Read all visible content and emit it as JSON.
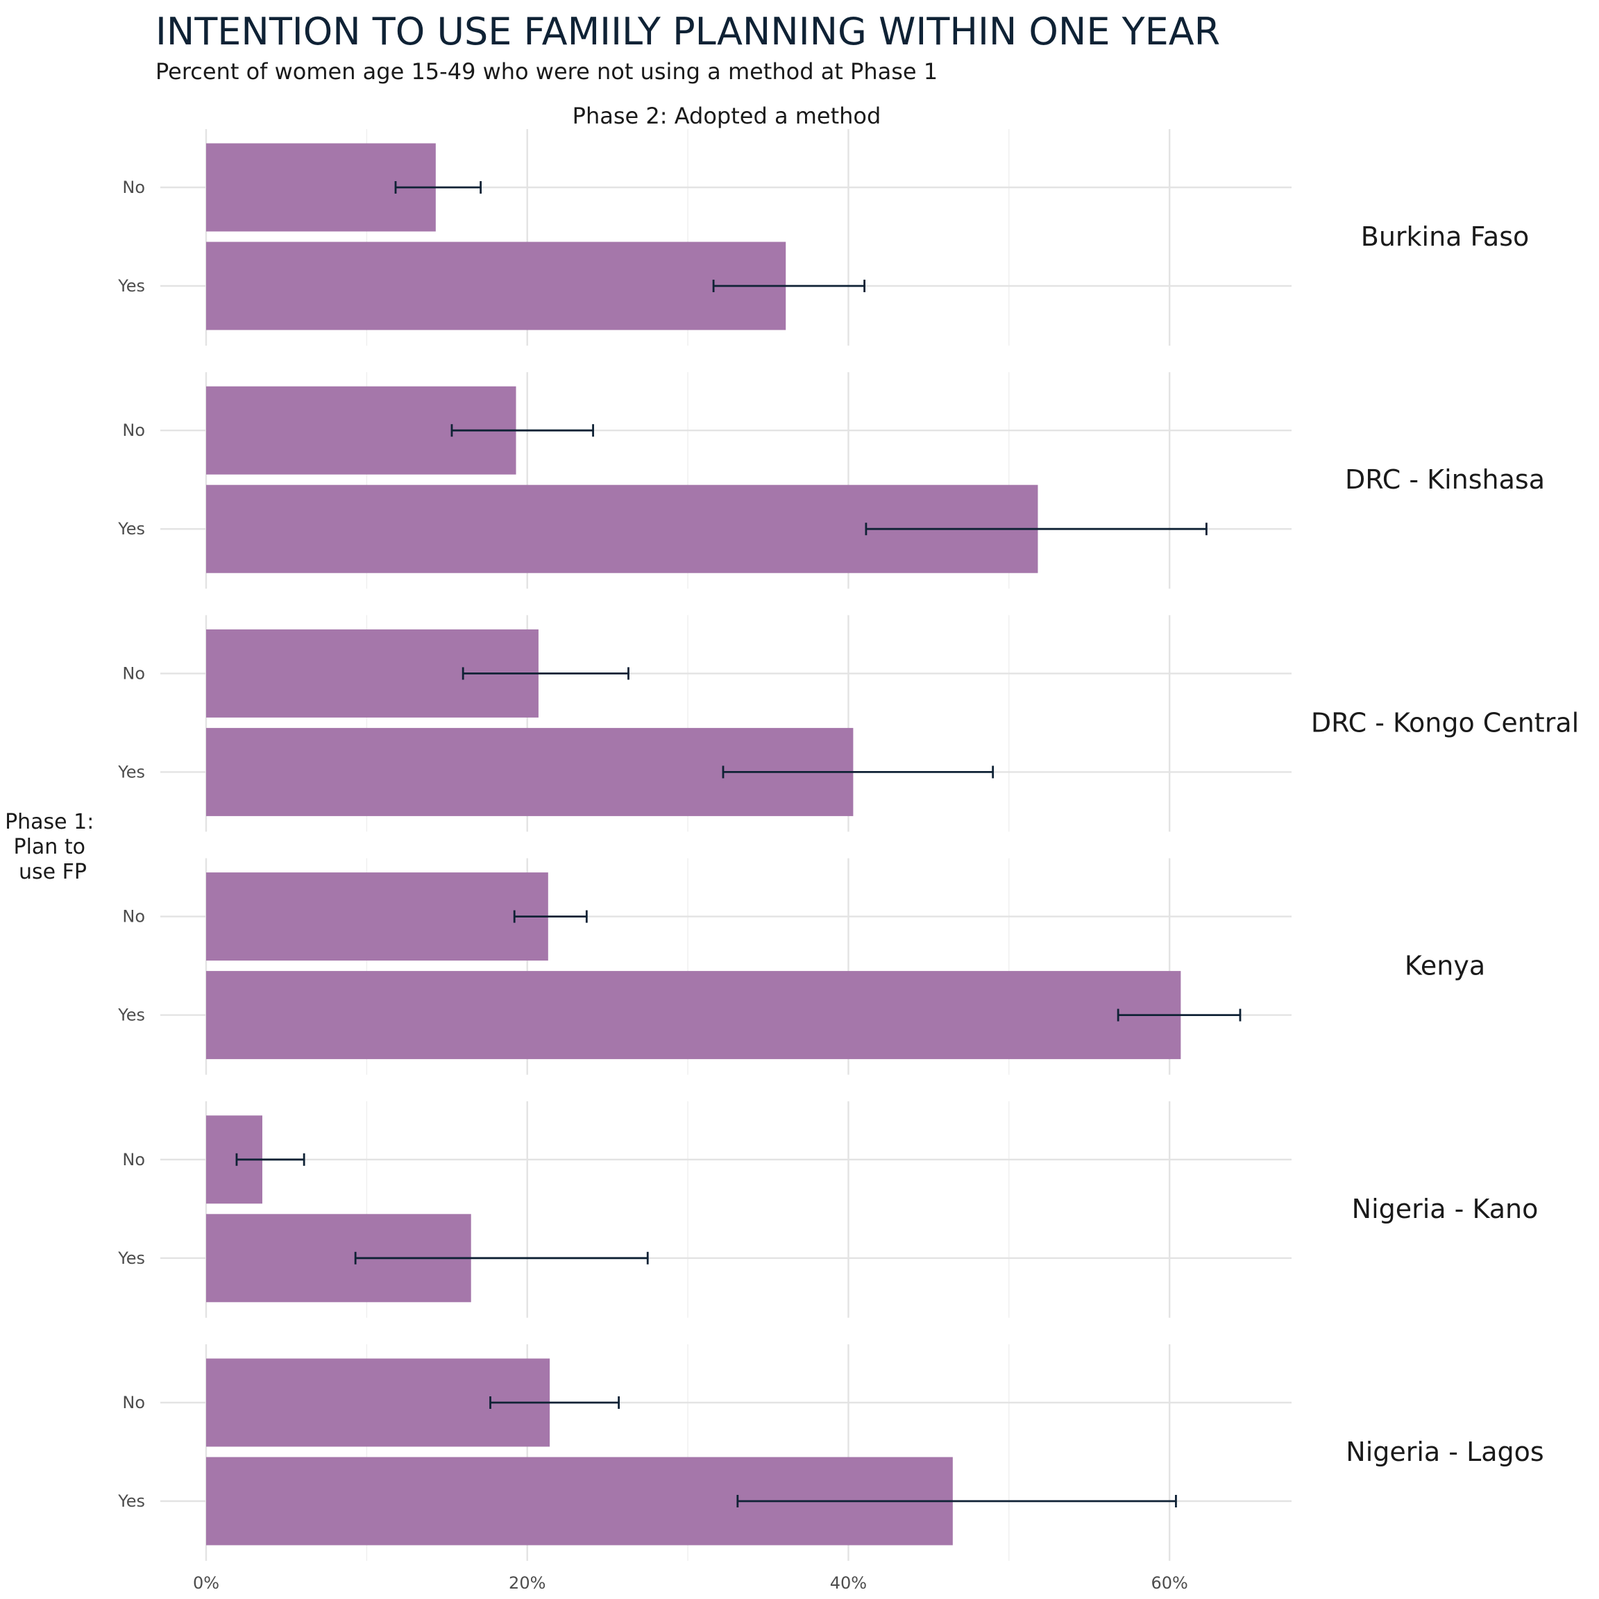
{
  "chart_data": {
    "type": "bar",
    "orientation": "horizontal",
    "title": "INTENTION TO USE FAMIILY PLANNING WITHIN ONE YEAR",
    "subtitle": "Percent of women age 15-49 who were not using a method at Phase 1",
    "panel_header": "Phase 2: Adopted a method",
    "ylabel_lines": [
      "Phase 1:",
      "Plan to",
      "use FP"
    ],
    "categories": [
      "No",
      "Yes"
    ],
    "x_ticks": [
      0,
      20,
      40,
      60
    ],
    "x_tick_labels": [
      "0%",
      "20%",
      "40%",
      "60%"
    ],
    "xlim": [
      0,
      67.6
    ],
    "grid": true,
    "bar_color": "#a577aa",
    "errorbar_color": "#0f2235",
    "facets": [
      {
        "label": "Burkina Faso",
        "bars": [
          {
            "category": "No",
            "value": 14.3,
            "ci": [
              11.8,
              17.1
            ]
          },
          {
            "category": "Yes",
            "value": 36.1,
            "ci": [
              31.6,
              41.0
            ]
          }
        ]
      },
      {
        "label": "DRC - Kinshasa",
        "bars": [
          {
            "category": "No",
            "value": 19.3,
            "ci": [
              15.3,
              24.1
            ]
          },
          {
            "category": "Yes",
            "value": 51.8,
            "ci": [
              41.1,
              62.3
            ]
          }
        ]
      },
      {
        "label": "DRC - Kongo Central",
        "bars": [
          {
            "category": "No",
            "value": 20.7,
            "ci": [
              16.0,
              26.3
            ]
          },
          {
            "category": "Yes",
            "value": 40.3,
            "ci": [
              32.2,
              49.0
            ]
          }
        ]
      },
      {
        "label": "Kenya",
        "bars": [
          {
            "category": "No",
            "value": 21.3,
            "ci": [
              19.2,
              23.7
            ]
          },
          {
            "category": "Yes",
            "value": 60.7,
            "ci": [
              56.8,
              64.4
            ]
          }
        ]
      },
      {
        "label": "Nigeria - Kano",
        "bars": [
          {
            "category": "No",
            "value": 3.5,
            "ci": [
              1.9,
              6.1
            ]
          },
          {
            "category": "Yes",
            "value": 16.5,
            "ci": [
              9.3,
              27.5
            ]
          }
        ]
      },
      {
        "label": "Nigeria - Lagos",
        "bars": [
          {
            "category": "No",
            "value": 21.4,
            "ci": [
              17.7,
              25.7
            ]
          },
          {
            "category": "Yes",
            "value": 46.5,
            "ci": [
              33.1,
              60.4
            ]
          }
        ]
      }
    ]
  }
}
